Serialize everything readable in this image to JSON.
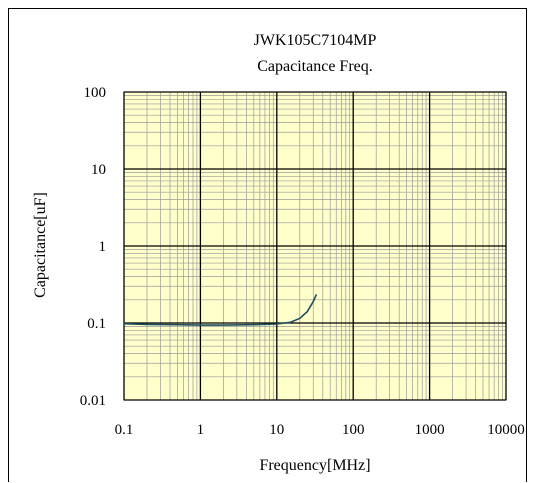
{
  "chart_data": {
    "type": "line",
    "title": "JWK105C7104MP",
    "subtitle": "Capacitance Freq.",
    "xlabel": "Frequency[MHz]",
    "ylabel": "Capacitance[uF]",
    "x_scale": "log",
    "y_scale": "log",
    "xlim": [
      0.1,
      10000
    ],
    "ylim": [
      0.01,
      100
    ],
    "x_ticks": [
      "0.1",
      "1",
      "10",
      "100",
      "1000",
      "10000"
    ],
    "y_ticks": [
      "100",
      "10",
      "1",
      "0.1",
      "0.01"
    ],
    "grid": true,
    "plot_background": "#ffffcc",
    "series": [
      {
        "color": "#1f4e5f",
        "x": [
          0.1,
          0.2,
          0.5,
          1,
          2,
          5,
          10,
          15,
          20,
          25,
          30,
          33
        ],
        "y": [
          0.098,
          0.096,
          0.095,
          0.094,
          0.094,
          0.095,
          0.097,
          0.102,
          0.115,
          0.14,
          0.19,
          0.235
        ]
      }
    ]
  }
}
